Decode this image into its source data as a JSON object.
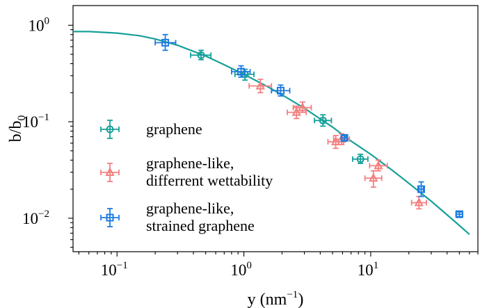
{
  "chart_data": {
    "type": "scatter",
    "title": "",
    "x_scale": "log",
    "y_scale": "log",
    "xlim": [
      0.045,
      70
    ],
    "ylim": [
      0.0045,
      1.6
    ],
    "grid": false,
    "legend_position": "center-left",
    "xlabel": {
      "main": "y (nm",
      "exp": "−1",
      "close": ")"
    },
    "ylabel": {
      "main": "b/b",
      "sub": "0"
    },
    "x_ticks": [
      {
        "value": 0.1,
        "base": "10",
        "exp": "−1"
      },
      {
        "value": 1,
        "base": "10",
        "exp": "0"
      },
      {
        "value": 10,
        "base": "10",
        "exp": "1"
      }
    ],
    "y_ticks": [
      {
        "value": 0.01,
        "base": "10",
        "exp": "−2"
      },
      {
        "value": 0.1,
        "base": "10",
        "exp": "−1"
      },
      {
        "value": 1,
        "base": "10",
        "exp": "0"
      }
    ],
    "fit_curve": {
      "color": "#17a09a",
      "points": [
        [
          0.045,
          0.86
        ],
        [
          0.06,
          0.86
        ],
        [
          0.1,
          0.83
        ],
        [
          0.15,
          0.78
        ],
        [
          0.2,
          0.72
        ],
        [
          0.3,
          0.62
        ],
        [
          0.5,
          0.48
        ],
        [
          0.7,
          0.39
        ],
        [
          1,
          0.31
        ],
        [
          1.5,
          0.235
        ],
        [
          2,
          0.19
        ],
        [
          3,
          0.138
        ],
        [
          4,
          0.107
        ],
        [
          5,
          0.088
        ],
        [
          7,
          0.063
        ],
        [
          10,
          0.046
        ],
        [
          15,
          0.031
        ],
        [
          20,
          0.023
        ],
        [
          30,
          0.015
        ],
        [
          45,
          0.0095
        ],
        [
          60,
          0.0068
        ]
      ]
    },
    "series": [
      {
        "name": "graphene",
        "marker": "circle",
        "color": "#17a09a",
        "points": [
          {
            "x": 0.46,
            "y": 0.49,
            "xerr": [
              0.38,
              0.55
            ],
            "yerr": [
              0.44,
              0.55
            ]
          },
          {
            "x": 1.02,
            "y": 0.31,
            "xerr": [
              0.85,
              1.2
            ],
            "yerr": [
              0.27,
              0.35
            ]
          },
          {
            "x": 4.2,
            "y": 0.103,
            "xerr": [
              3.6,
              4.9
            ],
            "yerr": [
              0.09,
              0.118
            ]
          },
          {
            "x": 8.3,
            "y": 0.041,
            "xerr": [
              7.2,
              9.5
            ],
            "yerr": [
              0.037,
              0.046
            ]
          }
        ]
      },
      {
        "name": "graphene-like, differrent wettability",
        "marker": "triangle",
        "color": "#f47f7f",
        "points": [
          {
            "x": 1.35,
            "y": 0.235,
            "xerr": [
              1.1,
              1.65
            ],
            "yerr": [
              0.2,
              0.275
            ]
          },
          {
            "x": 2.6,
            "y": 0.125,
            "xerr": [
              2.2,
              3.1
            ],
            "yerr": [
              0.108,
              0.145
            ]
          },
          {
            "x": 2.9,
            "y": 0.14,
            "xerr": [
              2.45,
              3.4
            ],
            "yerr": [
              0.125,
              0.16
            ]
          },
          {
            "x": 5.3,
            "y": 0.062,
            "xerr": [
              4.6,
              6.1
            ],
            "yerr": [
              0.053,
              0.072
            ]
          },
          {
            "x": 5.9,
            "y": 0.066,
            "xerr": [
              5.1,
              6.8
            ],
            "yerr": [
              0.058,
              0.075
            ]
          },
          {
            "x": 10.5,
            "y": 0.026,
            "xerr": [
              9.0,
              12.2
            ],
            "yerr": [
              0.021,
              0.031
            ]
          },
          {
            "x": 11.5,
            "y": 0.035,
            "xerr": [
              9.8,
              13.5
            ],
            "yerr": [
              0.031,
              0.04
            ]
          },
          {
            "x": 24,
            "y": 0.0145,
            "xerr": [
              21,
              27.5
            ],
            "yerr": [
              0.0125,
              0.0168
            ]
          }
        ]
      },
      {
        "name": "graphene-like, strained graphene",
        "marker": "square",
        "color": "#1d7be0",
        "points": [
          {
            "x": 0.24,
            "y": 0.66,
            "xerr": [
              0.2,
              0.29
            ],
            "yerr": [
              0.55,
              0.8
            ]
          },
          {
            "x": 0.95,
            "y": 0.33,
            "xerr": [
              0.8,
              1.12
            ],
            "yerr": [
              0.29,
              0.38
            ]
          },
          {
            "x": 1.95,
            "y": 0.21,
            "xerr": [
              1.65,
              2.3
            ],
            "yerr": [
              0.185,
              0.24
            ]
          },
          {
            "x": 6.2,
            "y": 0.068,
            "xerr": [
              5.9,
              6.5
            ],
            "yerr": [
              0.064,
              0.072
            ]
          },
          {
            "x": 25,
            "y": 0.02,
            "xerr": [
              24,
              26
            ],
            "yerr": [
              0.0168,
              0.0238
            ]
          },
          {
            "x": 50,
            "y": 0.011,
            "xerr": [
              47,
              53
            ],
            "yerr": [
              0.0104,
              0.0116
            ]
          }
        ]
      }
    ],
    "legend": [
      {
        "lines": [
          "graphene"
        ],
        "marker": "circle",
        "color": "#17a09a"
      },
      {
        "lines": [
          "graphene-like,",
          "differrent wettability"
        ],
        "marker": "triangle",
        "color": "#f47f7f"
      },
      {
        "lines": [
          "graphene-like,",
          "strained graphene"
        ],
        "marker": "square",
        "color": "#1d7be0"
      }
    ]
  }
}
